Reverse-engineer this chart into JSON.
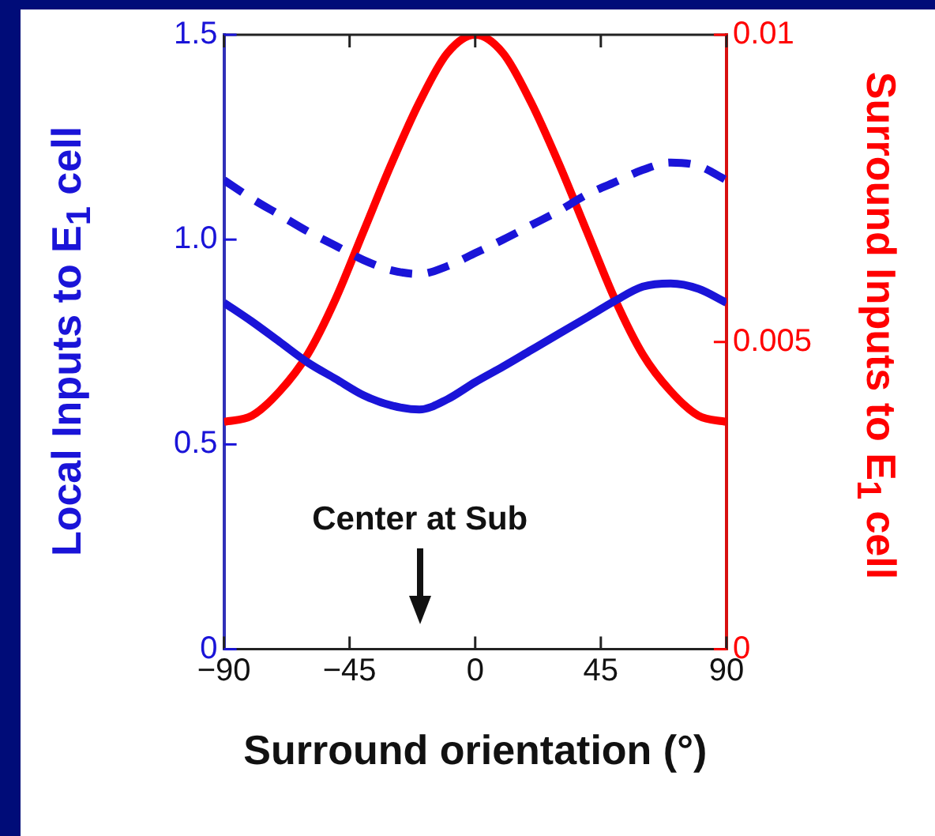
{
  "chart_data": {
    "type": "line",
    "xlabel": "Surround orientation (°)",
    "ylabel": "Local Inputs to E$_{1}$ cell",
    "y2label": "Surround Inputs to E$_{1}$ cell",
    "x": [
      -90,
      -80,
      -70,
      -60,
      -50,
      -40,
      -30,
      -20,
      -10,
      0,
      10,
      20,
      30,
      40,
      50,
      60,
      70,
      80,
      90
    ],
    "series": [
      {
        "color": "#1a14d8",
        "values": [
          0.846,
          0.8,
          0.75,
          0.7,
          0.66,
          0.62,
          0.595,
          0.585,
          0.61,
          0.652,
          0.69,
          0.73,
          0.77,
          0.81,
          0.85,
          0.885,
          0.893,
          0.88,
          0.846
        ]
      },
      {
        "color": "#1a14d8",
        "line_style": "dashed",
        "values": [
          1.145,
          1.1,
          1.06,
          1.02,
          0.985,
          0.95,
          0.925,
          0.916,
          0.935,
          0.967,
          1.0,
          1.035,
          1.07,
          1.11,
          1.14,
          1.17,
          1.188,
          1.18,
          1.145
        ]
      },
      {
        "color": "#ff0000",
        "axis": "y2",
        "values": [
          0.0037,
          0.0038,
          0.0042,
          0.0048,
          0.0057,
          0.0068,
          0.0079,
          0.0089,
          0.0097,
          0.01,
          0.0097,
          0.0089,
          0.0079,
          0.0068,
          0.0057,
          0.0048,
          0.0042,
          0.0038,
          0.0037
        ]
      }
    ],
    "xlim": [
      -90,
      90
    ],
    "xticks": [
      {
        "value": -90,
        "label": "−90"
      },
      {
        "value": -45,
        "label": "−45"
      },
      0,
      45,
      90
    ],
    "ylim": [
      0,
      1.5
    ],
    "yticks": [
      0,
      0.5,
      {
        "value": 1,
        "label": "1.0"
      },
      1.5
    ],
    "y2lim": [
      0,
      0.01
    ],
    "y2ticks": [
      0,
      0.005,
      0.01
    ],
    "annotations": [
      "Center at Sub"
    ],
    "grid": false,
    "legend": false,
    "marker": "none"
  }
}
